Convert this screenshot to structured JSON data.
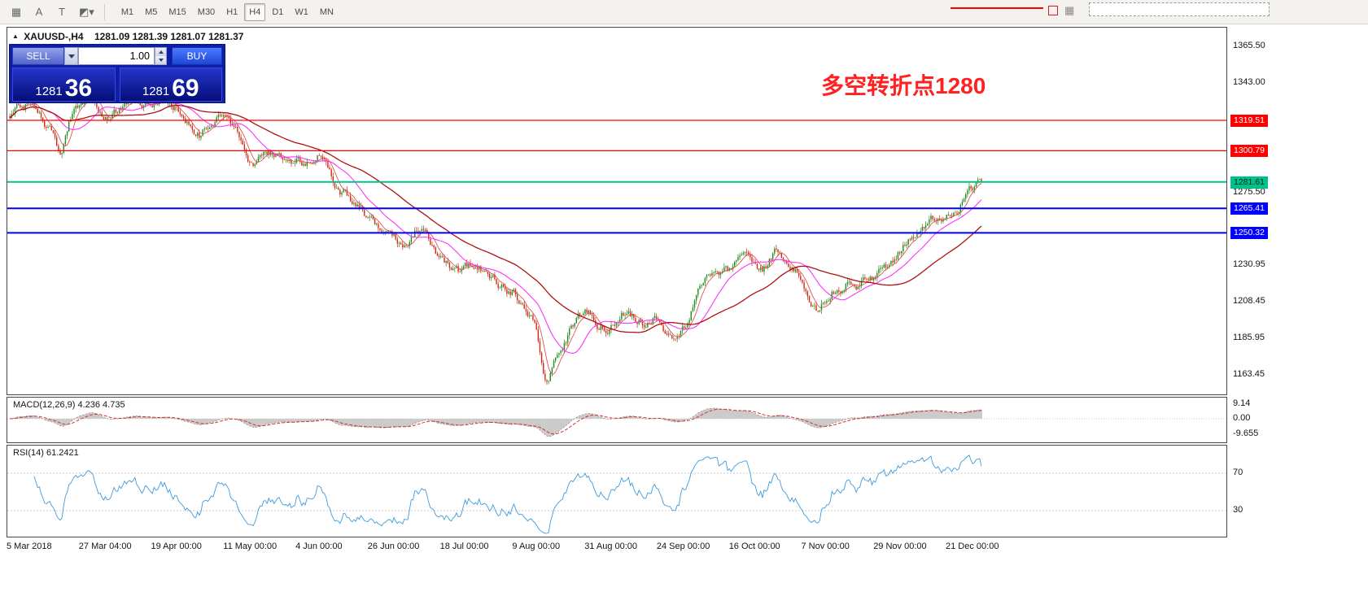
{
  "toolbar": {
    "left_icons": [
      {
        "name": "indicator-template-icon",
        "glyph": "▦"
      },
      {
        "name": "text-label-icon",
        "glyph": "A"
      },
      {
        "name": "text-box-icon",
        "glyph": "T"
      },
      {
        "name": "colors-dropdown-icon",
        "glyph": "◩▾"
      }
    ],
    "timeframes": [
      {
        "label": "M1",
        "active": false
      },
      {
        "label": "M5",
        "active": false
      },
      {
        "label": "M15",
        "active": false
      },
      {
        "label": "M30",
        "active": false
      },
      {
        "label": "H1",
        "active": false
      },
      {
        "label": "H4",
        "active": true
      },
      {
        "label": "D1",
        "active": false
      },
      {
        "label": "W1",
        "active": false
      },
      {
        "label": "MN",
        "active": false
      }
    ]
  },
  "chart": {
    "symbol_line": {
      "symbol": "XAUUSD-,H4",
      "ohlc": "1281.09 1281.39 1281.07 1281.37"
    },
    "trade_panel": {
      "sell_label": "SELL",
      "buy_label": "BUY",
      "volume": "1.00",
      "bid_main": "1281",
      "bid_pips": "36",
      "ask_main": "1281",
      "ask_pips": "69"
    },
    "annotation": {
      "text": "多空转折点1280",
      "color": "#FF2020"
    }
  },
  "levels": [
    {
      "text": "1319.51",
      "value": 1319.51,
      "color": "#FF0000",
      "text_color": "#FFFFFF",
      "line_width": 1.3
    },
    {
      "text": "1300.79",
      "value": 1300.79,
      "color": "#FF0000",
      "text_color": "#FFFFFF",
      "line_width": 1.3
    },
    {
      "text": "1281.61",
      "value": 1281.61,
      "color": "#00C08B",
      "text_color": "#00231A",
      "line_width": 2
    },
    {
      "text": "1265.41",
      "value": 1265.41,
      "color": "#0000FF",
      "text_color": "#FFFFFF",
      "line_width": 2
    },
    {
      "text": "1250.32",
      "value": 1250.32,
      "color": "#0000FF",
      "text_color": "#FFFFFF",
      "line_width": 2
    }
  ],
  "y_axis_labels": [
    {
      "text": "1365.50",
      "value": 1365.5
    },
    {
      "text": "1343.00",
      "value": 1343.0
    },
    {
      "text": "1275.50",
      "value": 1275.5
    },
    {
      "text": "1230.95",
      "value": 1230.95
    },
    {
      "text": "1208.45",
      "value": 1208.45
    },
    {
      "text": "1185.95",
      "value": 1185.95
    },
    {
      "text": "1163.45",
      "value": 1163.45
    }
  ],
  "x_axis_labels": [
    "5 Mar 2018",
    "27 Mar 04:00",
    "19 Apr 00:00",
    "11 May 00:00",
    "4 Jun 00:00",
    "26 Jun 00:00",
    "18 Jul 00:00",
    "9 Aug 00:00",
    "31 Aug 00:00",
    "24 Sep 00:00",
    "16 Oct 00:00",
    "7 Nov 00:00",
    "29 Nov 00:00",
    "21 Dec 00:00"
  ],
  "macd": {
    "label": "MACD(12,26,9) 4.236 4.735",
    "axis": [
      "9.14",
      "0.00",
      "-9.655"
    ]
  },
  "rsi": {
    "label": "RSI(14) 61.2421",
    "axis": [
      "70",
      "30"
    ]
  },
  "chart_data": {
    "type": "candlestick",
    "symbol": "XAUUSD-",
    "timeframe": "H4",
    "ohlc_current": {
      "open": 1281.09,
      "high": 1281.39,
      "low": 1281.07,
      "close": 1281.37
    },
    "bid": 1281.36,
    "ask": 1281.69,
    "visible_price_range": [
      1155,
      1372
    ],
    "horizontal_levels": [
      1319.51,
      1300.79,
      1281.61,
      1265.41,
      1250.32
    ],
    "price_anchors": [
      [
        0,
        1322
      ],
      [
        0.02,
        1330
      ],
      [
        0.04,
        1316
      ],
      [
        0.052,
        1300
      ],
      [
        0.065,
        1326
      ],
      [
        0.08,
        1332
      ],
      [
        0.1,
        1322
      ],
      [
        0.12,
        1328
      ],
      [
        0.145,
        1333
      ],
      [
        0.16,
        1336
      ],
      [
        0.175,
        1325
      ],
      [
        0.195,
        1313
      ],
      [
        0.218,
        1327
      ],
      [
        0.23,
        1315
      ],
      [
        0.25,
        1291
      ],
      [
        0.27,
        1299
      ],
      [
        0.3,
        1295
      ],
      [
        0.325,
        1298
      ],
      [
        0.34,
        1278
      ],
      [
        0.355,
        1270
      ],
      [
        0.373,
        1255
      ],
      [
        0.395,
        1250
      ],
      [
        0.41,
        1241
      ],
      [
        0.425,
        1254
      ],
      [
        0.447,
        1230
      ],
      [
        0.465,
        1222
      ],
      [
        0.48,
        1231
      ],
      [
        0.5,
        1220
      ],
      [
        0.521,
        1213
      ],
      [
        0.54,
        1192
      ],
      [
        0.552,
        1161
      ],
      [
        0.565,
        1178
      ],
      [
        0.58,
        1195
      ],
      [
        0.595,
        1201
      ],
      [
        0.615,
        1192
      ],
      [
        0.63,
        1203
      ],
      [
        0.645,
        1196
      ],
      [
        0.668,
        1199
      ],
      [
        0.68,
        1185
      ],
      [
        0.695,
        1192
      ],
      [
        0.71,
        1222
      ],
      [
        0.743,
        1228
      ],
      [
        0.76,
        1238
      ],
      [
        0.775,
        1231
      ],
      [
        0.79,
        1240
      ],
      [
        0.816,
        1226
      ],
      [
        0.832,
        1201
      ],
      [
        0.845,
        1214
      ],
      [
        0.86,
        1222
      ],
      [
        0.875,
        1220
      ],
      [
        0.89,
        1224
      ],
      [
        0.905,
        1231
      ],
      [
        0.92,
        1244
      ],
      [
        0.935,
        1248
      ],
      [
        0.95,
        1256
      ],
      [
        0.964,
        1262
      ],
      [
        0.98,
        1273
      ],
      [
        1,
        1281.4
      ]
    ],
    "moving_averages": [
      {
        "period": 7,
        "color": "#E04040",
        "width": 0.8
      },
      {
        "period": 22,
        "color": "#FF22FF",
        "width": 1
      },
      {
        "period": 60,
        "color": "#B01010",
        "width": 1.3
      }
    ],
    "indicators": [
      {
        "name": "MACD",
        "params": [
          12,
          26,
          9
        ],
        "values": [
          4.236,
          4.735
        ],
        "axis_range": [
          -9.655,
          9.14
        ]
      },
      {
        "name": "RSI",
        "params": [
          14
        ],
        "value": 61.2421,
        "levels": [
          30,
          70
        ]
      }
    ]
  }
}
